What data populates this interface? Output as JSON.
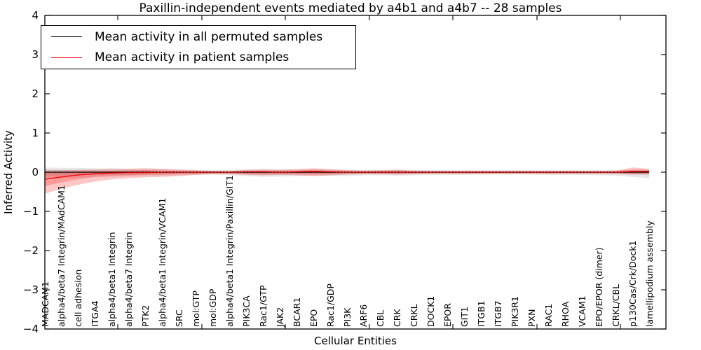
{
  "figure": {
    "title": "Paxillin-independent events mediated by a4b1 and a4b7 -- 28 samples",
    "xlabel": "Cellular Entities",
    "ylabel": "Inferred Activity"
  },
  "legend": {
    "items": [
      {
        "label": "Mean activity in all permuted samples",
        "color": "#000000"
      },
      {
        "label": "Mean activity in patient samples",
        "color": "#ff0000"
      }
    ]
  },
  "chart_data": {
    "type": "line",
    "title": "Paxillin-independent events mediated by a4b1 and a4b7 -- 28 samples",
    "xlabel": "Cellular Entities",
    "ylabel": "Inferred Activity",
    "ylim": [
      -4,
      4
    ],
    "yticks": [
      4,
      3,
      2,
      1,
      0,
      -1,
      -2,
      -3,
      -4
    ],
    "grid": false,
    "legend_position": "upper left",
    "categories": [
      "MADCAM1",
      "alpha4/beta7 Integrin/MAdCAM1",
      "cell adhesion",
      "ITGA4",
      "alpha4/beta1 Integrin",
      "alpha4/beta7 Integrin",
      "PTK2",
      "alpha4/beta1 Integrin/VCAM1",
      "SRC",
      "mol:GTP",
      "mol:GDP",
      "alpha4/beta1 Integrin/Paxillin/GIT1",
      "PIK3CA",
      "Rac1/GTP",
      "JAK2",
      "BCAR1",
      "EPO",
      "Rac1/GDP",
      "PI3K",
      "ARF6",
      "CBL",
      "CRK",
      "CRKL",
      "DOCK1",
      "EPOR",
      "GIT1",
      "ITGB1",
      "ITGB7",
      "PIK3R1",
      "PXN",
      "RAC1",
      "RHOA",
      "VCAM1",
      "EPO/EPOR (dimer)",
      "CRKL/CBL",
      "p130Cas/Crk/Dock1",
      "lamellipodium assembly"
    ],
    "series": [
      {
        "name": "Mean activity in all permuted samples",
        "color": "#000000",
        "style": "solid",
        "values": [
          0,
          0,
          0,
          0,
          0,
          0,
          0,
          0,
          0,
          0,
          0,
          0,
          0,
          0,
          0,
          0,
          0,
          0,
          0,
          0,
          0,
          0,
          0,
          0,
          0,
          0,
          0,
          0,
          0,
          0,
          0,
          0,
          0,
          0,
          0,
          0,
          0
        ]
      },
      {
        "name": "Mean activity in patient samples",
        "color": "#ff0000",
        "style": "solid",
        "values": [
          -0.18,
          -0.12,
          -0.07,
          -0.04,
          -0.02,
          -0.01,
          -0.01,
          0,
          0,
          0,
          0,
          0,
          0.01,
          0.01,
          0,
          0.01,
          0.02,
          0.01,
          0,
          0,
          0,
          0,
          0,
          0,
          0,
          0,
          0,
          0,
          0,
          0,
          0,
          0,
          0,
          0,
          0,
          0.02,
          0.02
        ]
      },
      {
        "name": "zero-reference",
        "color": "#000000",
        "style": "dotted",
        "values": [
          0,
          0,
          0,
          0,
          0,
          0,
          0,
          0,
          0,
          0,
          0,
          0,
          0,
          0,
          0,
          0,
          0,
          0,
          0,
          0,
          0,
          0,
          0,
          0,
          0,
          0,
          0,
          0,
          0,
          0,
          0,
          0,
          0,
          0,
          0,
          0,
          0
        ]
      }
    ],
    "bands": [
      {
        "name": "permuted-range-outer",
        "color": "rgba(0,0,0,0.09)",
        "hi": [
          0.12,
          0.11,
          0.11,
          0.1,
          0.1,
          0.09,
          0.09,
          0.08,
          0.07,
          0.06,
          0.05,
          0.06,
          0.07,
          0.08,
          0.08,
          0.07,
          0.07,
          0.07,
          0.07,
          0.06,
          0.06,
          0.07,
          0.06,
          0.06,
          0.05,
          0.05,
          0.05,
          0.05,
          0.05,
          0.05,
          0.05,
          0.05,
          0.05,
          0.05,
          0.05,
          0.06,
          0.07
        ],
        "lo": [
          -0.16,
          -0.15,
          -0.14,
          -0.13,
          -0.12,
          -0.11,
          -0.1,
          -0.09,
          -0.08,
          -0.07,
          -0.06,
          -0.08,
          -0.1,
          -0.12,
          -0.11,
          -0.1,
          -0.09,
          -0.09,
          -0.1,
          -0.08,
          -0.08,
          -0.09,
          -0.08,
          -0.07,
          -0.07,
          -0.07,
          -0.06,
          -0.06,
          -0.06,
          -0.06,
          -0.07,
          -0.07,
          -0.07,
          -0.08,
          -0.09,
          -0.12,
          -0.16
        ]
      },
      {
        "name": "permuted-range-inner",
        "color": "rgba(0,0,0,0.09)",
        "hi": [
          0.06,
          0.06,
          0.06,
          0.05,
          0.05,
          0.05,
          0.05,
          0.04,
          0.04,
          0.03,
          0.03,
          0.03,
          0.04,
          0.04,
          0.04,
          0.04,
          0.04,
          0.04,
          0.04,
          0.03,
          0.03,
          0.04,
          0.03,
          0.03,
          0.03,
          0.03,
          0.03,
          0.03,
          0.03,
          0.03,
          0.03,
          0.03,
          0.03,
          0.03,
          0.03,
          0.03,
          0.04
        ],
        "lo": [
          -0.09,
          -0.08,
          -0.08,
          -0.07,
          -0.07,
          -0.06,
          -0.05,
          -0.05,
          -0.04,
          -0.04,
          -0.03,
          -0.04,
          -0.05,
          -0.06,
          -0.06,
          -0.05,
          -0.05,
          -0.05,
          -0.05,
          -0.04,
          -0.04,
          -0.05,
          -0.04,
          -0.04,
          -0.04,
          -0.04,
          -0.03,
          -0.03,
          -0.03,
          -0.03,
          -0.04,
          -0.04,
          -0.04,
          -0.04,
          -0.05,
          -0.06,
          -0.08
        ]
      },
      {
        "name": "patient-range-outer",
        "color": "rgba(255,0,0,0.22)",
        "hi": [
          0.05,
          0.05,
          0.06,
          0.07,
          0.08,
          0.09,
          0.1,
          0.09,
          0.07,
          0.05,
          0.03,
          0.03,
          0.06,
          0.07,
          0.06,
          0.08,
          0.1,
          0.08,
          0.05,
          0.04,
          0.05,
          0.06,
          0.04,
          0.03,
          0.03,
          0.03,
          0.03,
          0.03,
          0.03,
          0.03,
          0.03,
          0.03,
          0.03,
          0.03,
          0.04,
          0.12,
          0.09
        ],
        "lo": [
          -0.55,
          -0.42,
          -0.32,
          -0.24,
          -0.18,
          -0.15,
          -0.13,
          -0.12,
          -0.1,
          -0.07,
          -0.05,
          -0.05,
          -0.07,
          -0.08,
          -0.07,
          -0.08,
          -0.1,
          -0.08,
          -0.06,
          -0.05,
          -0.05,
          -0.06,
          -0.05,
          -0.04,
          -0.04,
          -0.04,
          -0.04,
          -0.04,
          -0.04,
          -0.04,
          -0.04,
          -0.04,
          -0.04,
          -0.04,
          -0.04,
          -0.06,
          -0.05
        ]
      },
      {
        "name": "patient-range-inner",
        "color": "rgba(255,0,0,0.22)",
        "hi": [
          -0.02,
          0.0,
          0.01,
          0.02,
          0.03,
          0.04,
          0.05,
          0.04,
          0.03,
          0.02,
          0.02,
          0.02,
          0.03,
          0.04,
          0.03,
          0.04,
          0.06,
          0.04,
          0.03,
          0.02,
          0.03,
          0.03,
          0.02,
          0.02,
          0.02,
          0.02,
          0.02,
          0.02,
          0.02,
          0.02,
          0.02,
          0.02,
          0.02,
          0.02,
          0.02,
          0.07,
          0.05
        ],
        "lo": [
          -0.35,
          -0.26,
          -0.18,
          -0.12,
          -0.09,
          -0.08,
          -0.07,
          -0.06,
          -0.05,
          -0.04,
          -0.03,
          -0.03,
          -0.04,
          -0.05,
          -0.04,
          -0.05,
          -0.06,
          -0.05,
          -0.03,
          -0.03,
          -0.03,
          -0.03,
          -0.03,
          -0.02,
          -0.02,
          -0.02,
          -0.02,
          -0.02,
          -0.02,
          -0.02,
          -0.02,
          -0.02,
          -0.02,
          -0.02,
          -0.02,
          -0.04,
          -0.03
        ]
      }
    ]
  }
}
